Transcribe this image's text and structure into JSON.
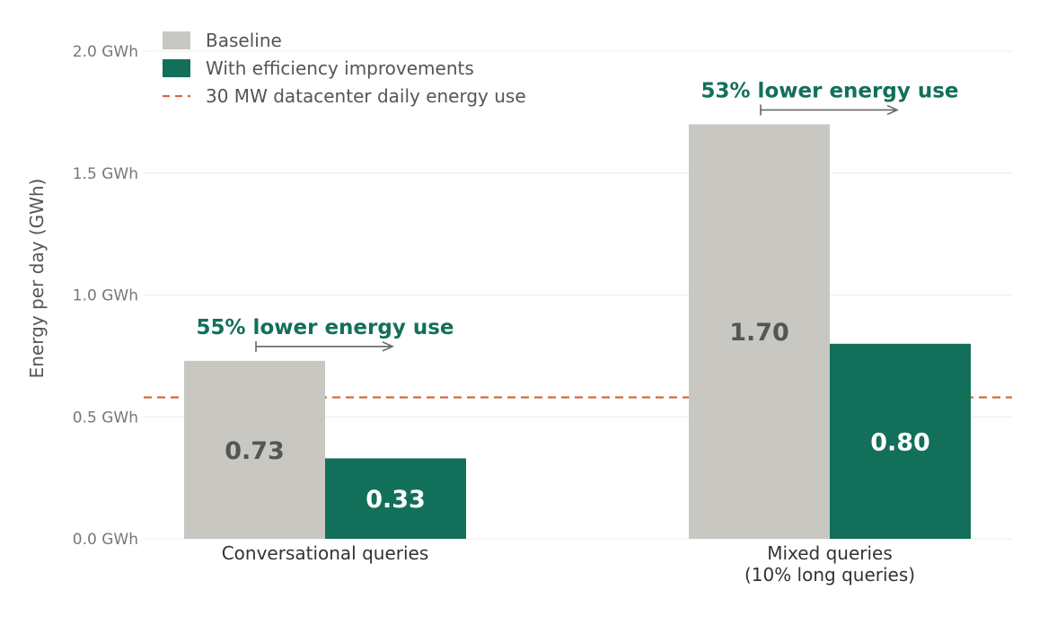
{
  "chart_data": {
    "type": "bar",
    "title": "",
    "xlabel": "",
    "ylabel": "Energy per day (GWh)",
    "ylim": [
      0,
      2.0
    ],
    "yticks": [
      0.0,
      0.5,
      1.0,
      1.5,
      2.0
    ],
    "ytick_labels": [
      "0.0 GWh",
      "0.5 GWh",
      "1.0 GWh",
      "1.5 GWh",
      "2.0 GWh"
    ],
    "grid": true,
    "legend_position": "top-left",
    "categories": [
      {
        "lines": [
          "Conversational queries"
        ]
      },
      {
        "lines": [
          "Mixed queries",
          "(10% long queries)"
        ]
      }
    ],
    "series": [
      {
        "name": "Baseline",
        "values": [
          0.73,
          1.7
        ],
        "labels": [
          "0.73",
          "1.70"
        ],
        "color": "#c8c7c2",
        "label_color": "#555555"
      },
      {
        "name": "With efficiency improvements",
        "values": [
          0.33,
          0.8
        ],
        "labels": [
          "0.33",
          "0.80"
        ],
        "color": "#12705a",
        "label_color": "#ffffff"
      }
    ],
    "reference_line": {
      "name": "30 MW datacenter daily energy use",
      "value": 0.58,
      "color": "#d46a3f"
    },
    "annotations": [
      {
        "text": "55% lower energy use",
        "category_index": 0,
        "color": "#12705a"
      },
      {
        "text": "53% lower energy use",
        "category_index": 1,
        "color": "#12705a"
      }
    ],
    "colors": {
      "grid": "#ececec",
      "tick_text": "#777777",
      "axis_text": "#555555",
      "category_text": "#333333",
      "arrow": "#666666"
    }
  }
}
